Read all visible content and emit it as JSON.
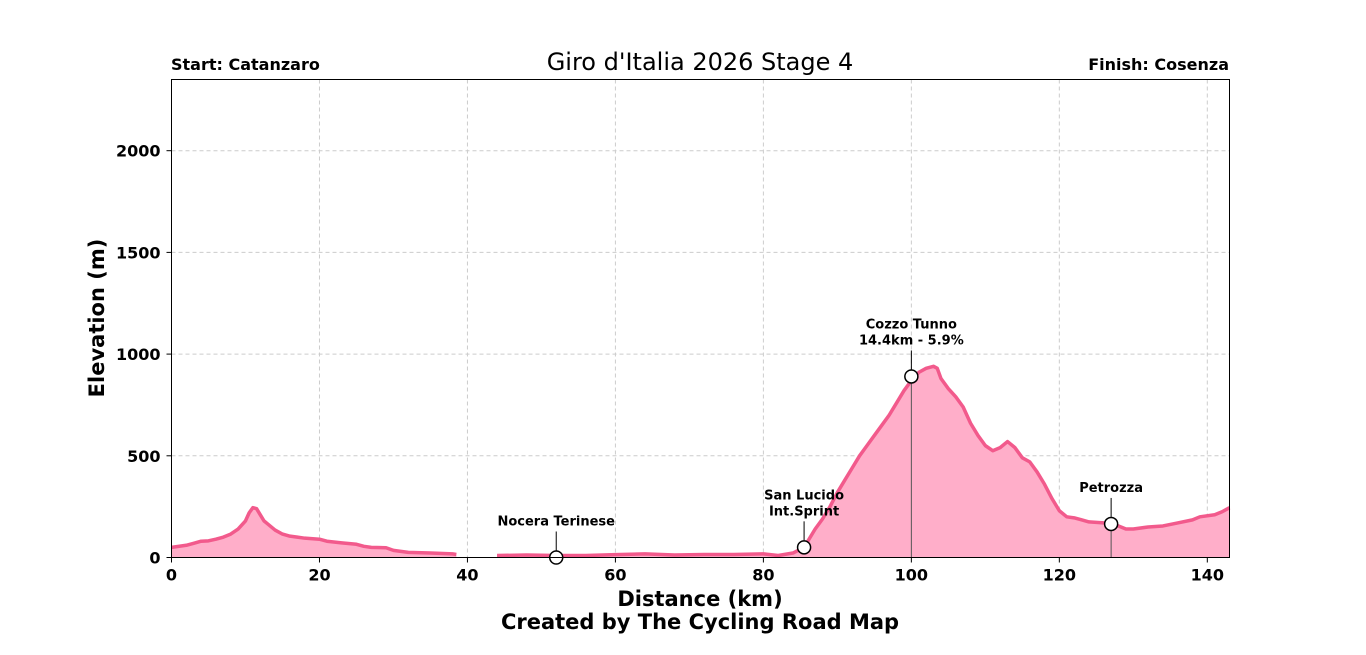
{
  "chart_data": {
    "type": "area",
    "title": "Giro d'Italia 2026 Stage 4",
    "start_label": "Start: Catanzaro",
    "finish_label": "Finish: Cosenza",
    "xlabel": "Distance (km)",
    "ylabel": "Elevation (m)",
    "credit": "Created by The Cycling Road Map",
    "xlim": [
      0,
      143
    ],
    "ylim": [
      0,
      2350
    ],
    "x_ticks": [
      0,
      20,
      40,
      60,
      80,
      100,
      120,
      140
    ],
    "y_ticks": [
      0,
      500,
      1000,
      1500,
      2000
    ],
    "grid": true,
    "colors": {
      "fill": "#ffaec9",
      "line": "#f25a8c",
      "grid": "#cccccc"
    },
    "series": [
      {
        "segments": [
          [
            [
              0,
              50
            ],
            [
              2,
              60
            ],
            [
              3,
              70
            ],
            [
              4,
              80
            ],
            [
              5,
              82
            ],
            [
              6,
              90
            ],
            [
              7,
              100
            ],
            [
              8,
              115
            ],
            [
              9,
              140
            ],
            [
              10,
              180
            ],
            [
              10.5,
              220
            ],
            [
              11,
              245
            ],
            [
              11.5,
              240
            ],
            [
              12,
              210
            ],
            [
              12.5,
              180
            ],
            [
              13,
              165
            ],
            [
              14,
              135
            ],
            [
              15,
              115
            ],
            [
              16,
              105
            ],
            [
              17,
              100
            ],
            [
              18,
              95
            ],
            [
              20,
              90
            ],
            [
              21,
              80
            ],
            [
              23,
              72
            ],
            [
              25,
              65
            ],
            [
              26,
              55
            ],
            [
              27,
              50
            ],
            [
              29,
              48
            ],
            [
              30,
              35
            ],
            [
              32,
              25
            ],
            [
              35,
              22
            ],
            [
              38,
              18
            ],
            [
              38.5,
              15
            ]
          ],
          [
            [
              44,
              10
            ],
            [
              48,
              12
            ],
            [
              52,
              10
            ],
            [
              56,
              10
            ],
            [
              60,
              14
            ],
            [
              64,
              18
            ],
            [
              68,
              12
            ],
            [
              72,
              15
            ],
            [
              76,
              15
            ],
            [
              80,
              18
            ],
            [
              82,
              10
            ],
            [
              84,
              22
            ],
            [
              85.5,
              50
            ],
            [
              86,
              80
            ],
            [
              87,
              140
            ],
            [
              88,
              190
            ],
            [
              89,
              250
            ],
            [
              90,
              320
            ],
            [
              91,
              380
            ],
            [
              92,
              440
            ],
            [
              93,
              500
            ],
            [
              94,
              550
            ],
            [
              95,
              600
            ],
            [
              96,
              650
            ],
            [
              97,
              700
            ],
            [
              98,
              760
            ],
            [
              99,
              820
            ],
            [
              100,
              870
            ],
            [
              101,
              910
            ],
            [
              102,
              930
            ],
            [
              103,
              940
            ],
            [
              103.5,
              930
            ],
            [
              104,
              880
            ],
            [
              105,
              830
            ],
            [
              106,
              790
            ],
            [
              107,
              740
            ],
            [
              108,
              660
            ],
            [
              109,
              600
            ],
            [
              110,
              550
            ],
            [
              111,
              525
            ],
            [
              112,
              540
            ],
            [
              113,
              570
            ],
            [
              114,
              540
            ],
            [
              115,
              490
            ],
            [
              116,
              470
            ],
            [
              117,
              420
            ],
            [
              118,
              360
            ],
            [
              119,
              290
            ],
            [
              120,
              230
            ],
            [
              121,
              200
            ],
            [
              122,
              195
            ],
            [
              123,
              185
            ],
            [
              124,
              175
            ],
            [
              126,
              170
            ],
            [
              127.5,
              162
            ],
            [
              128,
              155
            ],
            [
              129,
              140
            ],
            [
              130,
              140
            ],
            [
              132,
              150
            ],
            [
              134,
              155
            ],
            [
              136,
              170
            ],
            [
              138,
              185
            ],
            [
              139,
              200
            ],
            [
              141,
              210
            ],
            [
              142,
              225
            ],
            [
              143,
              245
            ]
          ]
        ]
      }
    ],
    "annotations": [
      {
        "label": "Nocera Terinese",
        "x": 52,
        "y": 0
      },
      {
        "label": "San Lucido\nInt.Sprint",
        "x": 85.5,
        "y": 50
      },
      {
        "label": "Cozzo Tunno\n14.4km - 5.9%",
        "x": 100,
        "y": 890
      },
      {
        "label": "Petrozza",
        "x": 127,
        "y": 165
      }
    ]
  }
}
